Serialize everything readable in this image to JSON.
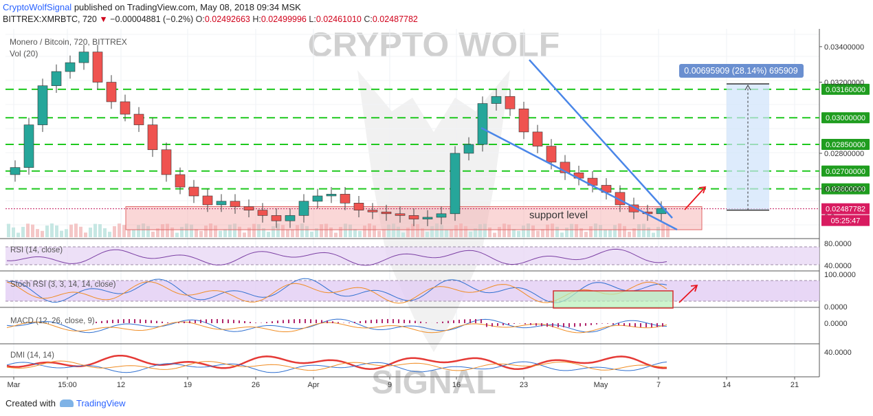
{
  "header": {
    "author": "CryptoWolfSignal",
    "published_text": "published on TradingView.com, May 08, 2018 09:34 MSK",
    "symbol_line": "BITTREX:XMRBTC, 720",
    "change_arrow": "▼",
    "change": "−0.00004881 (−0.2%)",
    "o_label": "O:",
    "o_value": "0.02492663",
    "h_label": "H:",
    "h_value": "0.02499996",
    "l_label": "L:",
    "l_value": "0.02461010",
    "c_label": "C:",
    "c_value": "0.02487782"
  },
  "watermark": {
    "top": "CRYPTO WOLF",
    "bottom": "SIGNAL"
  },
  "footer": {
    "created_with": "Created with",
    "brand": "TradingView"
  },
  "colors": {
    "up": "#26a69a",
    "down": "#ef5350",
    "green_dash": "#1ec81e",
    "trend": "#4a86e8",
    "red_arrow": "#e8161f",
    "label_green": "#1f9d1f"
  },
  "chart_data": {
    "type": "candlestick",
    "title": "Monero / Bitcoin, 720, BITTREX",
    "volume_label": "Vol (20)",
    "x_tick_labels": [
      "Mar",
      "15:00",
      "12",
      "19",
      "26",
      "Apr",
      "9",
      "16",
      "23",
      "May",
      "7",
      "14",
      "21"
    ],
    "y_range": [
      0.0232,
      0.035
    ],
    "y_ticks": [
      "0.03400000",
      "0.03200000",
      "0.02800000",
      "0.02600000"
    ],
    "level_lines": [
      {
        "value": 0.0316,
        "label": "0.03160000"
      },
      {
        "value": 0.03,
        "label": "0.03000000"
      },
      {
        "value": 0.0285,
        "label": "0.02850000"
      },
      {
        "value": 0.027,
        "label": "0.02700000"
      },
      {
        "value": 0.026,
        "label": "0.02600000"
      }
    ],
    "last_price": {
      "value": 0.02487782,
      "label": "0.02487782"
    },
    "countdown": "05:25:47",
    "partially_hidden_tick": "0.0",
    "support_zone": {
      "from": 0.0237,
      "to": 0.025,
      "label": "support level"
    },
    "measure_label": "0.00695909 (28.14%) 695909",
    "close_series": [
      0.0272,
      0.0296,
      0.0318,
      0.0326,
      0.0331,
      0.0337,
      0.032,
      0.0309,
      0.0302,
      0.0296,
      0.0282,
      0.0268,
      0.0261,
      0.0256,
      0.0251,
      0.0253,
      0.025,
      0.0248,
      0.0245,
      0.0242,
      0.0245,
      0.0253,
      0.0256,
      0.0257,
      0.0252,
      0.0248,
      0.0247,
      0.0246,
      0.0245,
      0.0243,
      0.0244,
      0.0246,
      0.028,
      0.0285,
      0.0308,
      0.0312,
      0.0305,
      0.0292,
      0.0284,
      0.0275,
      0.0269,
      0.0266,
      0.0262,
      0.0258,
      0.0251,
      0.0247,
      0.0246,
      0.0249
    ],
    "indicators": [
      {
        "name": "RSI (14, close)",
        "ticks": [
          "80.0000",
          "40.0000"
        ]
      },
      {
        "name": "Stoch RSI (3, 3, 14, 14, close)",
        "ticks": [
          "100.0000",
          "0.0000"
        ]
      },
      {
        "name": "MACD (12, 26, close, 9)",
        "ticks": [
          "0.0000"
        ]
      },
      {
        "name": "DMI (14, 14)",
        "ticks": [
          "40.0000"
        ]
      }
    ]
  }
}
